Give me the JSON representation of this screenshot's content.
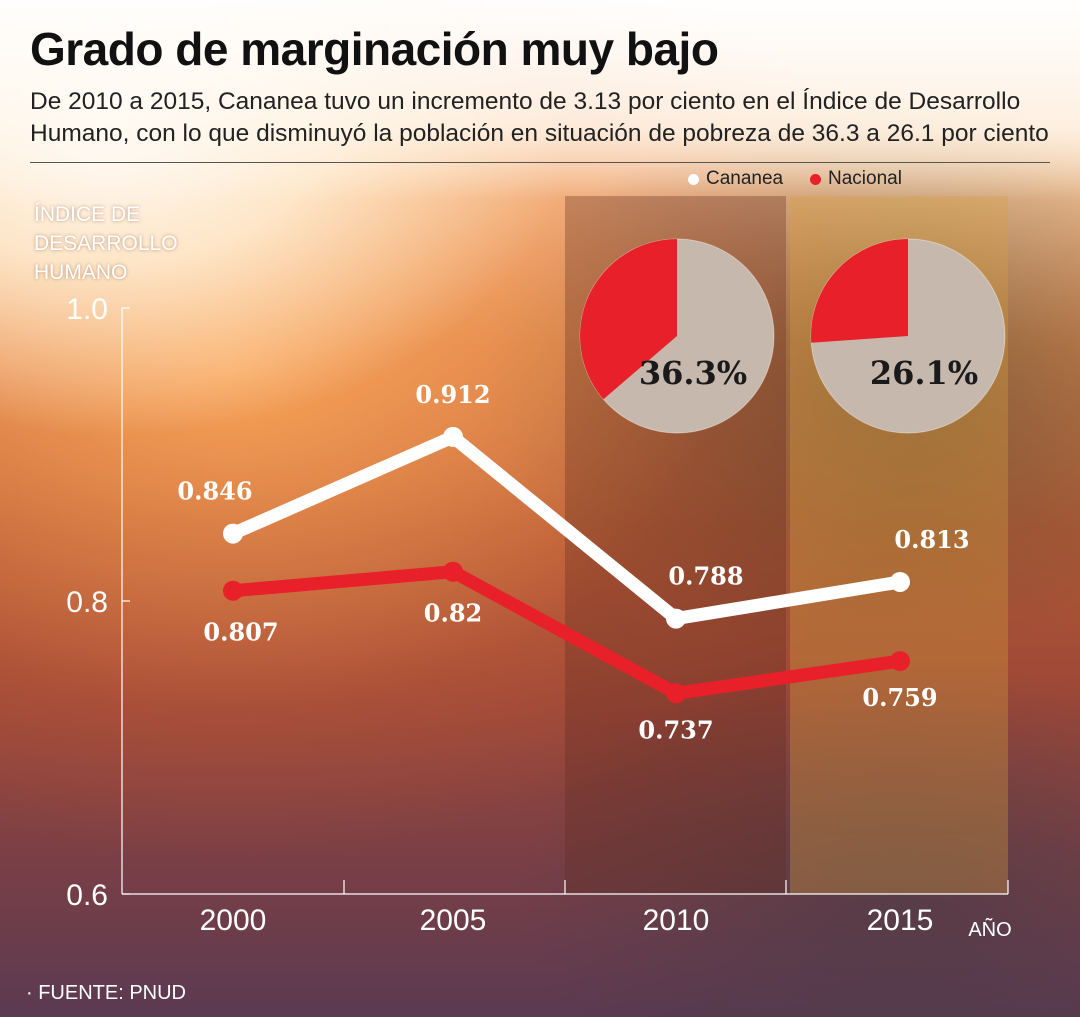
{
  "title": "Grado de marginación muy bajo",
  "subtitle": "De 2010 a 2015, Cananea tuvo un incremento de 3.13 por ciento en el Índice de Desarrollo Humano, con lo que disminuyó la población en situación de pobreza de 36.3 a 26.1 por ciento",
  "legend": [
    {
      "label": "Cananea",
      "color": "#ffffff"
    },
    {
      "label": "Nacional",
      "color": "#e8202a"
    }
  ],
  "source": "· FUENTE: PNUD",
  "chart_data": {
    "type": "line",
    "ylabel": "ÍNDICE DE DESARROLLO HUMANO",
    "xlabel": "AÑO",
    "categories": [
      "2000",
      "2005",
      "2010",
      "2015"
    ],
    "ylim": [
      0.6,
      1.0
    ],
    "yticks": [
      "0.6",
      "0.8",
      "1.0"
    ],
    "series": [
      {
        "name": "Cananea",
        "color": "#ffffff",
        "values": [
          0.846,
          0.912,
          0.788,
          0.813
        ],
        "labels": [
          "0.846",
          "0.912",
          "0.788",
          "0.813"
        ]
      },
      {
        "name": "Nacional",
        "color": "#e8202a",
        "values": [
          0.807,
          0.82,
          0.737,
          0.759
        ],
        "labels": [
          "0.807",
          "0.82",
          "0.737",
          "0.759"
        ]
      }
    ],
    "pies": [
      {
        "year": "2010",
        "value": 36.3,
        "label": "36.3%",
        "color": "#e8202a",
        "rest_color": "#c7b8ad"
      },
      {
        "year": "2015",
        "value": 26.1,
        "label": "26.1%",
        "color": "#e8202a",
        "rest_color": "#c7b8ad"
      }
    ],
    "grid": false
  }
}
